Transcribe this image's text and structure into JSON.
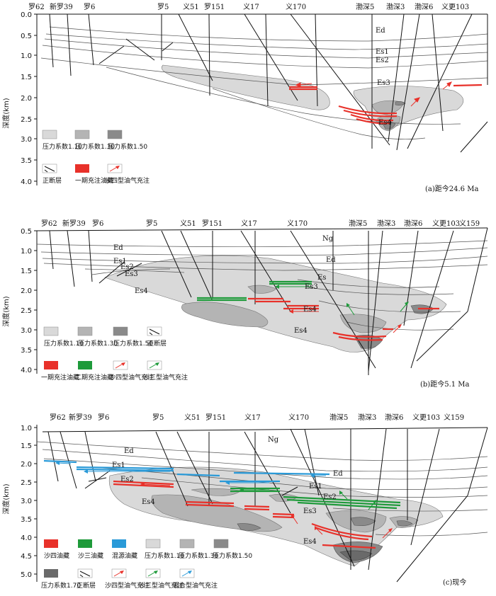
{
  "colors": {
    "p110": "#d9d9d9",
    "p130": "#b4b4b4",
    "p150": "#8a8a8a",
    "p170": "#6a6a6a",
    "es4_oil": "#e8312a",
    "es3_oil": "#1e9a3a",
    "mixed_oil": "#2a9ad8"
  },
  "panels": [
    {
      "caption": "(a)距今24.6 Ma",
      "yaxis_label": "深度(km)",
      "ticks": [
        "0.0",
        "0.5",
        "1.0",
        "1.5",
        "2.0",
        "2.5",
        "3.0",
        "3.5",
        "4.0"
      ],
      "wells": [
        "罗62",
        "新罗39",
        "罗6",
        "罗5",
        "义51",
        "罗151",
        "义17",
        "义170",
        "渤深5",
        "渤深3",
        "渤深6",
        "义更103"
      ],
      "strata": [
        "Ed",
        "Es1",
        "Es2",
        "Es3",
        "Es4"
      ],
      "legend": [
        {
          "label": "压力系数1.10",
          "kind": "swatch",
          "color": "p110"
        },
        {
          "label": "压力系数1.30",
          "kind": "swatch",
          "color": "p130"
        },
        {
          "label": "压力系数1.50",
          "kind": "swatch",
          "color": "p150"
        },
        {
          "label": "正断层",
          "kind": "fault"
        },
        {
          "label": "一期充注油藏",
          "kind": "swatch",
          "color": "es4_oil"
        },
        {
          "label": "沙四型油气充注",
          "kind": "arrow",
          "color": "es4_oil"
        }
      ]
    },
    {
      "caption": "(b)距今5.1 Ma",
      "yaxis_label": "深度(km)",
      "ticks": [
        "0.5",
        "1.0",
        "1.5",
        "2.0",
        "2.5",
        "3.0",
        "3.5",
        "4.0"
      ],
      "wells": [
        "罗62",
        "新罗39",
        "罗6",
        "罗5",
        "义51",
        "罗151",
        "义17",
        "义170",
        "渤深5",
        "渤深3",
        "渤深6",
        "义更103",
        "义159"
      ],
      "strata": [
        "Ng",
        "Ed",
        "Ed",
        "Es1",
        "Es2",
        "Es3",
        "Es4",
        "Es",
        "Es3",
        "Es4",
        "Es4"
      ],
      "legend": [
        {
          "label": "压力系数1.10",
          "kind": "swatch",
          "color": "p110"
        },
        {
          "label": "压力系数1.30",
          "kind": "swatch",
          "color": "p130"
        },
        {
          "label": "压力系数1.50",
          "kind": "swatch",
          "color": "p150"
        },
        {
          "label": "正断层",
          "kind": "fault"
        },
        {
          "label": "一期充注油藏",
          "kind": "swatch",
          "color": "es4_oil"
        },
        {
          "label": "二期充注油藏",
          "kind": "swatch",
          "color": "es3_oil"
        },
        {
          "label": "沙四型油气充注",
          "kind": "arrow",
          "color": "es4_oil"
        },
        {
          "label": "沙三型油气充注",
          "kind": "arrow",
          "color": "es3_oil"
        }
      ]
    },
    {
      "caption": "(c)现今",
      "yaxis_label": "深度(km)",
      "ticks": [
        "1.0",
        "1.5",
        "2.0",
        "2.5",
        "3.0",
        "3.5",
        "4.0",
        "4.5",
        "5.0"
      ],
      "wells": [
        "罗62",
        "新罗39",
        "罗6",
        "罗5",
        "义51",
        "罗151",
        "义17",
        "义170",
        "渤深5",
        "渤深3",
        "渤深6",
        "义更103",
        "义159"
      ],
      "strata": [
        "Ng",
        "Ed",
        "Ed",
        "Es1",
        "Es2",
        "Es1",
        "Es2",
        "Es3",
        "Es4",
        "Es4"
      ],
      "legend": [
        {
          "label": "沙四油藏",
          "kind": "swatch",
          "color": "es4_oil"
        },
        {
          "label": "沙三油藏",
          "kind": "swatch",
          "color": "es3_oil"
        },
        {
          "label": "混源油藏",
          "kind": "swatch",
          "color": "mixed_oil"
        },
        {
          "label": "压力系数1.10",
          "kind": "swatch",
          "color": "p110"
        },
        {
          "label": "压力系数1.30",
          "kind": "swatch",
          "color": "p130"
        },
        {
          "label": "压力系数1.50",
          "kind": "swatch",
          "color": "p150"
        },
        {
          "label": "压力系数1.70",
          "kind": "swatch",
          "color": "p170"
        },
        {
          "label": "正断层",
          "kind": "fault"
        },
        {
          "label": "沙四型油气充注",
          "kind": "arrow",
          "color": "es4_oil"
        },
        {
          "label": "沙三型油气充注",
          "kind": "arrow",
          "color": "es3_oil"
        },
        {
          "label": "混合型油气充注",
          "kind": "arrow",
          "color": "mixed_oil"
        }
      ]
    }
  ]
}
